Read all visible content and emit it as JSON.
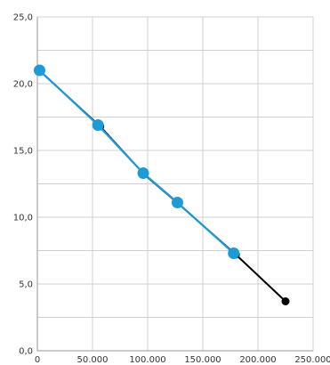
{
  "chart_data": {
    "type": "scatter",
    "title": "",
    "xlabel": "",
    "ylabel": "",
    "xlim": [
      0,
      250000
    ],
    "ylim": [
      0,
      25
    ],
    "grid": true,
    "x_ticks": [
      {
        "value": 0,
        "label": "0"
      },
      {
        "value": 50000,
        "label": "50.000"
      },
      {
        "value": 100000,
        "label": "100.000"
      },
      {
        "value": 150000,
        "label": "150.000"
      },
      {
        "value": 200000,
        "label": "200.000"
      },
      {
        "value": 250000,
        "label": "250.000"
      }
    ],
    "y_ticks": [
      {
        "value": 0,
        "label": "0,0"
      },
      {
        "value": 5,
        "label": "5,0"
      },
      {
        "value": 10,
        "label": "10,0"
      },
      {
        "value": 15,
        "label": "15,0"
      },
      {
        "value": 20,
        "label": "20,0"
      },
      {
        "value": 25,
        "label": "25,0"
      }
    ],
    "series": [
      {
        "color": "#000000",
        "marker": "dot",
        "x": [
          3000,
          57000,
          97000,
          128000,
          180000,
          225000
        ],
        "y": [
          20.9,
          16.8,
          13.2,
          11.0,
          7.2,
          3.7
        ]
      },
      {
        "color": "#1e9ad6",
        "marker": "large-dot",
        "x": [
          2000,
          55000,
          96000,
          127000,
          178000
        ],
        "y": [
          21.0,
          16.9,
          13.3,
          11.1,
          7.3
        ]
      }
    ]
  }
}
